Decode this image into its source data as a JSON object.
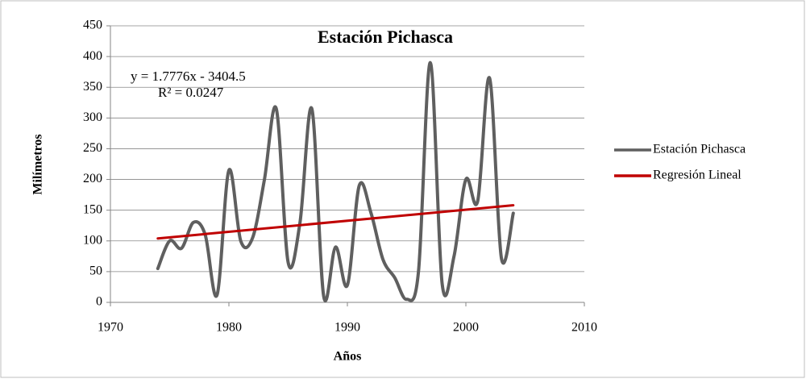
{
  "chart_data": {
    "type": "line",
    "title": "Estación Pichasca",
    "xlabel": "Años",
    "ylabel": "Milímetros",
    "annotations": [
      "y = 1.7776x - 3404.5",
      "R² = 0.0247"
    ],
    "series": [
      {
        "name": "Estación Pichasca",
        "color": "#5f5f5f",
        "smooth": true,
        "x": [
          1974,
          1975,
          1976,
          1977,
          1978,
          1979,
          1980,
          1981,
          1982,
          1983,
          1984,
          1985,
          1986,
          1987,
          1988,
          1989,
          1990,
          1991,
          1992,
          1993,
          1994,
          1995,
          1996,
          1997,
          1998,
          1999,
          2000,
          2001,
          2002,
          2003,
          2004
        ],
        "values": [
          55,
          100,
          88,
          130,
          110,
          12,
          215,
          100,
          105,
          200,
          315,
          65,
          130,
          315,
          10,
          90,
          28,
          190,
          145,
          70,
          40,
          5,
          50,
          390,
          30,
          75,
          200,
          165,
          365,
          72,
          145
        ]
      },
      {
        "name": "Regresión Lineal",
        "color": "#c00000",
        "smooth": false,
        "x": [
          1974,
          2004
        ],
        "values": [
          104,
          158
        ]
      }
    ],
    "xlim": [
      1970,
      2010
    ],
    "xticks": [
      1970,
      1980,
      1990,
      2000,
      2010
    ],
    "ylim": [
      0,
      450
    ],
    "yticks": [
      0,
      50,
      100,
      150,
      200,
      250,
      300,
      350,
      400,
      450
    ],
    "grid": true,
    "legend": "right"
  }
}
